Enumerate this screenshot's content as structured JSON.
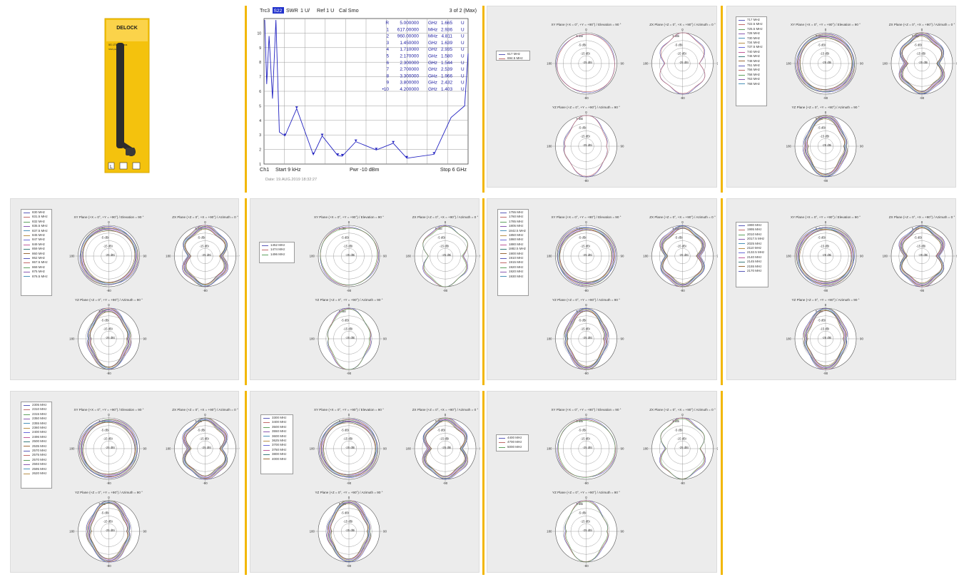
{
  "product": {
    "brand": "DELOCK",
    "model": "5G LTE Antenna",
    "connector": "SMA plug",
    "colors": {
      "box": "#f4c20d",
      "antenna": "#2c2c2c"
    }
  },
  "vna": {
    "trace": "Trc3",
    "param": "S22",
    "format": "SWR",
    "scale": "1 U/",
    "ref": "Ref 1 U",
    "cal": "Cal Smo",
    "marker_page": "3 of 2 (Max)",
    "channel": "Ch1",
    "start": "Start 9 kHz",
    "power": "Pwr -10 dBm",
    "stop": "Stop 6 GHz",
    "date": "Date: 19.AUG.2019  18:32:27",
    "colors": {
      "trace": "#2020c0",
      "grid": "#909090",
      "text": "#1a1aa0"
    },
    "markers": [
      {
        "id": "R",
        "freq": "5.000000",
        "unit": "GHz",
        "value": "1.665",
        "u": "U"
      },
      {
        "id": "1",
        "freq": "617.00000",
        "unit": "MHz",
        "value": "2.936",
        "u": "U"
      },
      {
        "id": "2",
        "freq": "960.00000",
        "unit": "MHz",
        "value": "4.811",
        "u": "U"
      },
      {
        "id": "3",
        "freq": "1.450000",
        "unit": "GHz",
        "value": "1.639",
        "u": "U"
      },
      {
        "id": "4",
        "freq": "1.710000",
        "unit": "GHz",
        "value": "2.935",
        "u": "U"
      },
      {
        "id": "5",
        "freq": "2.170000",
        "unit": "GHz",
        "value": "1.580",
        "u": "U"
      },
      {
        "id": "6",
        "freq": "2.300000",
        "unit": "GHz",
        "value": "1.544",
        "u": "U"
      },
      {
        "id": "7",
        "freq": "2.700000",
        "unit": "GHz",
        "value": "2.539",
        "u": "U"
      },
      {
        "id": "8",
        "freq": "3.300000",
        "unit": "GHz",
        "value": "1.966",
        "u": "U"
      },
      {
        "id": "9",
        "freq": "3.800000",
        "unit": "GHz",
        "value": "2.432",
        "u": "U"
      },
      {
        "id": "•10",
        "freq": "4.200000",
        "unit": "GHz",
        "value": "1.403",
        "u": "U"
      }
    ],
    "y_ticks": [
      "10",
      "9",
      "8",
      "7",
      "6",
      "5",
      "4",
      "3",
      "2",
      "1"
    ]
  },
  "labels": {
    "xy_title": "XY Plane (+X = 0°, +Y = +90°) / Elevation = 90 °",
    "zx_title": "ZX Plane (+Z = 0°, +X = +90°) / Azimuth = 0 °",
    "yz_title": "YZ Plane (+Z = 0°, +Y = +90°) / Azimuth = 90 °",
    "ring_labels": [
      "5 dBi",
      "-5 dBi",
      "-15 dBi",
      "-25 dBi"
    ],
    "angle_top": "0",
    "angle_left": "180",
    "angle_bottom": "-90",
    "angle_right": "90"
  },
  "chart_data": [
    {
      "type": "line",
      "title": "",
      "xlabel": "",
      "ylabel": "",
      "x_unit": "GHz",
      "xlim": [
        0,
        6
      ],
      "ylim": [
        1,
        11
      ],
      "series": [
        {
          "name": "Trc3 S22 SWR",
          "x": [
            0.617,
            0.96,
            1.45,
            1.71,
            2.17,
            2.3,
            2.7,
            3.3,
            3.8,
            4.2,
            5.0
          ],
          "y": [
            2.936,
            4.811,
            1.639,
            2.935,
            1.58,
            1.544,
            2.539,
            1.966,
            2.432,
            1.403,
            1.665
          ]
        }
      ]
    },
    {
      "type": "polar",
      "legend": [
        "617 MHz",
        "694.5 MHz"
      ]
    },
    {
      "type": "polar",
      "legend": [
        "717 MHz",
        "722.5 MHz",
        "725.5 MHz",
        "728 MHz",
        "730 MHz",
        "734 MHz",
        "737.5 MHz",
        "740 MHz",
        "746 MHz",
        "748 MHz",
        "751 MHz",
        "756 MHz",
        "758 MHz",
        "763 MHz",
        "768 MHz"
      ]
    },
    {
      "type": "polar",
      "legend": [
        "830 MHz",
        "831.5 MHz",
        "832 MHz",
        "835.5 MHz",
        "837.5 MHz",
        "845 MHz",
        "847 MHz",
        "849 MHz",
        "859 MHz",
        "860 MHz",
        "862 MHz",
        "867.5 MHz",
        "869 MHz",
        "875 MHz",
        "876.5 MHz"
      ]
    },
    {
      "type": "polar",
      "legend": [
        "1452 MHz",
        "1474 MHz",
        "1496 MHz"
      ]
    },
    {
      "type": "polar",
      "legend": [
        "1755 MHz",
        "1760 MHz",
        "1785 MHz",
        "1805 MHz",
        "1842.5 MHz",
        "1850 MHz",
        "1860 MHz",
        "1880 MHz",
        "1882.5 MHz",
        "1900 MHz",
        "1910 MHz",
        "1915 MHz",
        "1920 MHz",
        "1920 MHz",
        "1930 MHz"
      ]
    },
    {
      "type": "polar",
      "legend": [
        "1990 MHz",
        "1995 MHz",
        "2010 MHz",
        "2017.5 MHz",
        "2025 MHz",
        "2110 MHz",
        "2132.5 MHz",
        "2140 MHz",
        "2145 MHz",
        "2155 MHz",
        "2170 MHz"
      ]
    },
    {
      "type": "polar",
      "legend": [
        "2305 MHz",
        "2310 MHz",
        "2315 MHz",
        "2350 MHz",
        "2355 MHz",
        "2360 MHz",
        "2400 MHz",
        "2496 MHz",
        "2500 MHz",
        "2535 MHz",
        "2570 MHz",
        "2575 MHz",
        "2570 MHz",
        "2593 MHz",
        "2595 MHz",
        "2620 MHz"
      ]
    },
    {
      "type": "polar",
      "legend": [
        "3300 MHz",
        "3400 MHz",
        "3500 MHz",
        "3550 MHz",
        "3600 MHz",
        "3625 MHz",
        "3700 MHz",
        "3750 MHz",
        "3800 MHz",
        "4000 MHz"
      ]
    },
    {
      "type": "polar",
      "legend": [
        "4400 MHz",
        "4700 MHz",
        "5000 MHz"
      ]
    }
  ]
}
